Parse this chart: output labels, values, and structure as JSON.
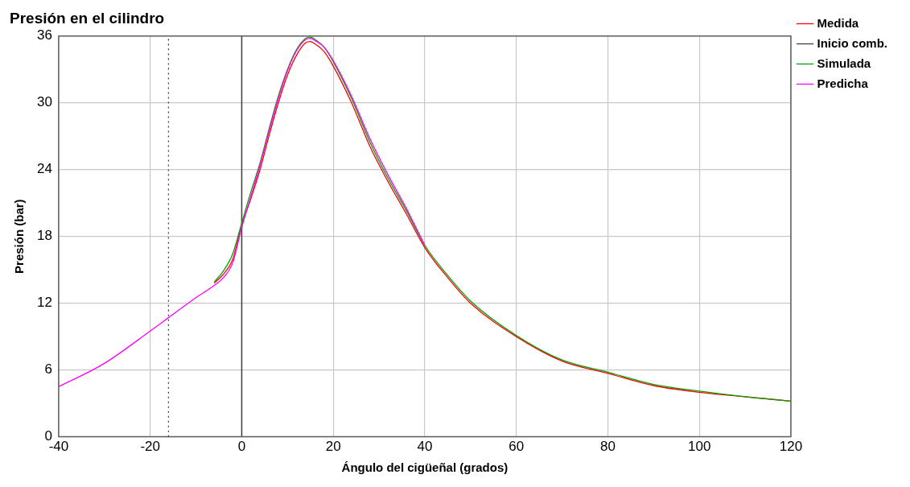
{
  "chart_data": {
    "type": "line",
    "title": "Presión en el cilindro",
    "xlabel": "Ángulo del cigüeñal (grados)",
    "ylabel": "Presión (bar)",
    "xlim": [
      -40,
      120
    ],
    "xticks": [
      -40,
      -20,
      0,
      20,
      40,
      60,
      80,
      100,
      120
    ],
    "ylim": [
      0,
      36
    ],
    "yticks": [
      0,
      6,
      12,
      18,
      24,
      30,
      36
    ],
    "grid": true,
    "legend": "top right",
    "ref_lines": [
      {
        "axis": "x",
        "value": 0,
        "color": "#404040"
      }
    ],
    "series": [
      {
        "name": "Medida",
        "color": "#ff0000",
        "x": [
          -6,
          -4,
          -2,
          0,
          2,
          4,
          6,
          8,
          10,
          12,
          14,
          15,
          16,
          18,
          20,
          24,
          28,
          32,
          36,
          40,
          45,
          50,
          60,
          70,
          80,
          90,
          100,
          110,
          120
        ],
        "values": [
          13.8,
          14.6,
          15.9,
          19.0,
          21.4,
          24.0,
          27.1,
          30.0,
          32.5,
          34.3,
          35.4,
          35.5,
          35.3,
          34.6,
          33.3,
          30.0,
          26.1,
          22.9,
          20.0,
          17.0,
          14.3,
          12.0,
          9.0,
          6.8,
          5.7,
          4.6,
          4.0,
          3.6,
          3.2
        ]
      },
      {
        "name": "Inicio comb.",
        "type": "line",
        "line_style": "dotted",
        "color": "#404040",
        "x": [
          -16,
          -16
        ],
        "values": [
          0,
          36
        ]
      },
      {
        "name": "Simulada",
        "color": "#00a000",
        "x": [
          -6,
          -4,
          -2,
          0,
          2,
          4,
          6,
          8,
          10,
          12,
          14,
          15,
          16,
          18,
          20,
          24,
          28,
          32,
          36,
          40,
          45,
          50,
          60,
          70,
          80,
          90,
          100,
          110,
          120
        ],
        "values": [
          13.9,
          14.9,
          16.4,
          19.2,
          22.0,
          24.6,
          27.7,
          30.6,
          33.0,
          34.8,
          35.8,
          35.9,
          35.7,
          35.0,
          33.7,
          30.4,
          26.5,
          23.2,
          20.3,
          17.2,
          14.5,
          12.2,
          9.1,
          6.9,
          5.8,
          4.7,
          4.1,
          3.6,
          3.2
        ]
      },
      {
        "name": "Predicha",
        "color": "#ff00ff",
        "x": [
          -40,
          -30,
          -20,
          -16,
          -10,
          -6,
          -4,
          -2,
          0,
          2,
          4,
          6,
          8,
          10,
          12,
          14,
          15,
          16,
          18,
          20,
          24,
          28,
          32,
          36,
          40
        ],
        "values": [
          4.5,
          6.6,
          9.5,
          10.7,
          12.5,
          13.6,
          14.3,
          15.6,
          18.8,
          21.6,
          24.4,
          27.5,
          30.4,
          32.9,
          34.7,
          35.7,
          35.8,
          35.6,
          35.0,
          33.8,
          30.6,
          26.8,
          23.5,
          20.5,
          17.2
        ]
      }
    ]
  }
}
